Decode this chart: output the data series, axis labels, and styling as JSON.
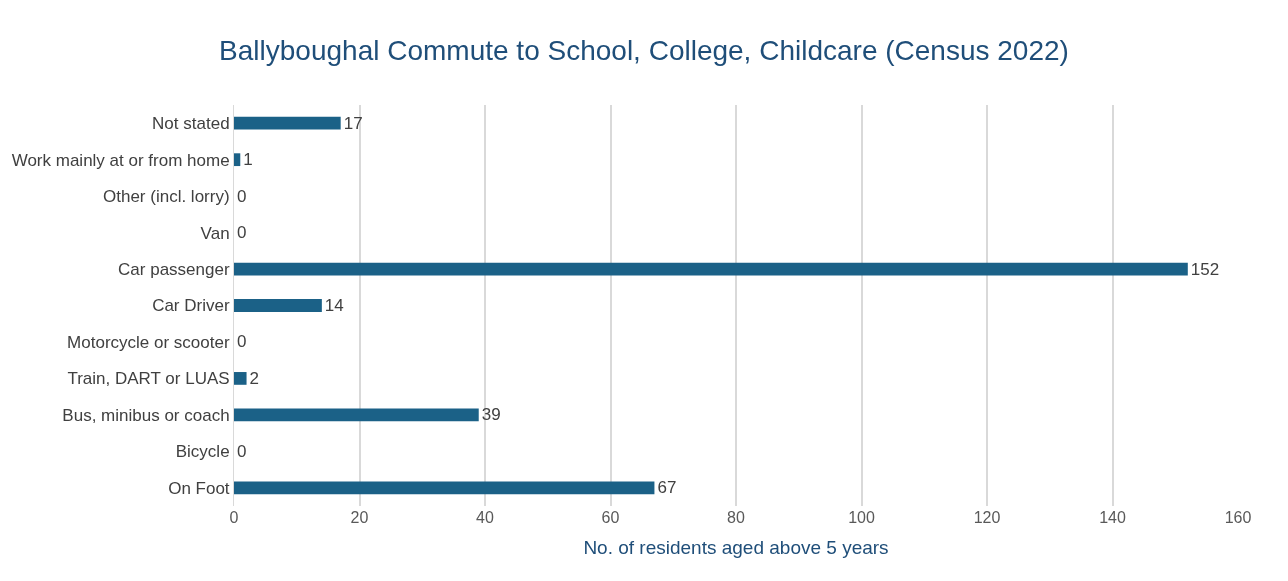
{
  "chart_data": {
    "type": "bar",
    "orientation": "horizontal",
    "title": "Ballyboughal Commute to School, College, Childcare (Census 2022)",
    "xlabel": "No. of residents aged above 5 years",
    "categories": [
      "Not stated",
      "Work mainly at or from home",
      "Other (incl. lorry)",
      "Van",
      "Car passenger",
      "Car Driver",
      "Motorcycle or scooter",
      "Train, DART or LUAS",
      "Bus, minibus or coach",
      "Bicycle",
      "On Foot"
    ],
    "values": [
      17,
      1,
      0,
      0,
      152,
      14,
      0,
      2,
      39,
      0,
      67
    ],
    "color": "#1b6187",
    "xlim": [
      0,
      160
    ],
    "xticks": [
      0,
      20,
      40,
      60,
      80,
      100,
      120,
      140,
      160
    ],
    "grid": "x",
    "data_labels": true,
    "legend": false
  }
}
